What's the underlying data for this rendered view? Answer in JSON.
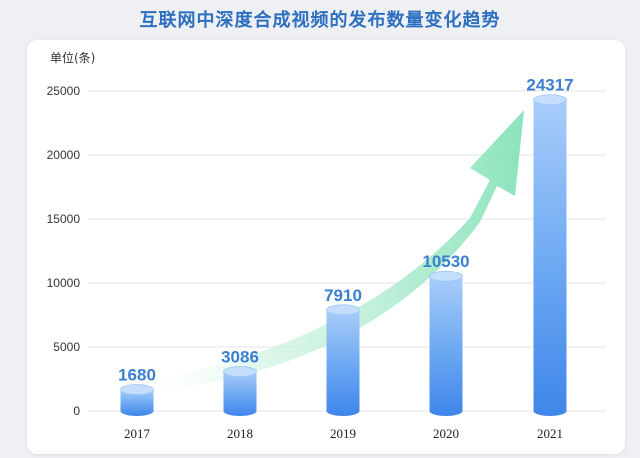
{
  "chart_data": {
    "type": "bar",
    "title": "互联网中深度合成视频的发布数量变化趋势",
    "ylabel": "单位(条)",
    "xlabel": "",
    "categories": [
      "2017",
      "2018",
      "2019",
      "2020",
      "2021"
    ],
    "values": [
      1680,
      3086,
      7910,
      10530,
      24317
    ],
    "ylim": [
      0,
      25000
    ],
    "yticks": [
      "0",
      "5000",
      "10000",
      "15000",
      "20000",
      "25000"
    ],
    "grid": true,
    "bar_color": "#3f86ea",
    "arrow_color": "#7fe0b4"
  }
}
